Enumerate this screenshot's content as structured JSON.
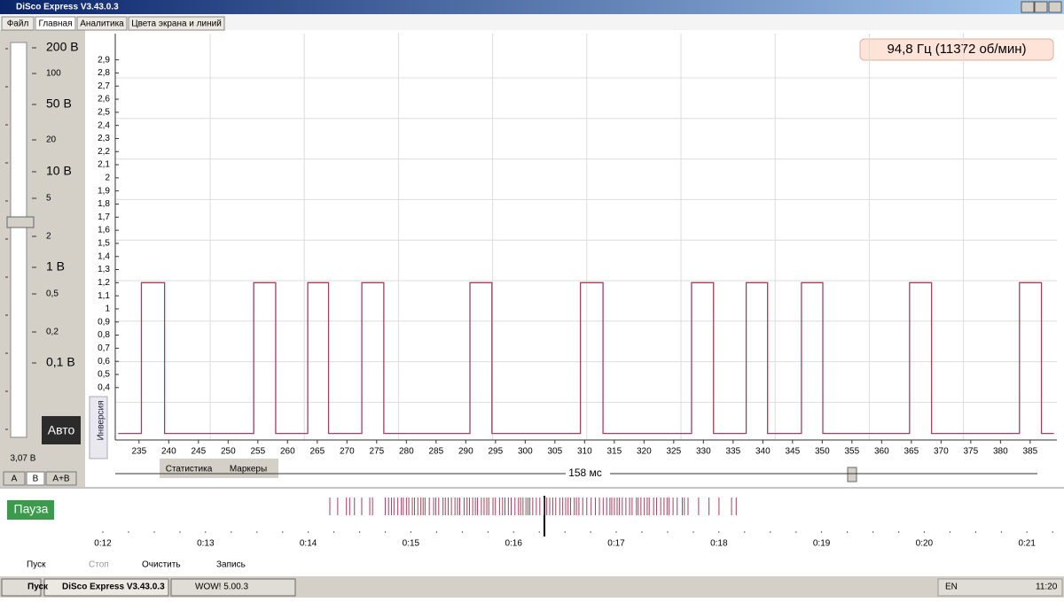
{
  "window": {
    "title": "DiSco Express V3.43.0.3"
  },
  "tabs": [
    "Файл",
    "Главная",
    "Аналитика",
    "Цвета экрана и линий"
  ],
  "scale": {
    "labels": [
      "200 В",
      "100",
      "50 В",
      "20",
      "10 В",
      "5",
      "2",
      "1 В",
      "0,5",
      "0,2",
      "0,1 В"
    ],
    "auto": "Авто",
    "reading": "3,07 В",
    "channels": [
      "A",
      "B",
      "A+B"
    ]
  },
  "chart_data": {
    "type": "line",
    "annotation": "94,8 Гц (11372 об/мин)",
    "x": [
      231.5,
      235.4,
      235.4,
      239.3,
      239.3,
      254.3,
      254.3,
      258.0,
      258.0,
      263.4,
      263.4,
      266.9,
      266.9,
      272.5,
      272.5,
      276.2,
      276.2,
      290.7,
      290.7,
      294.4,
      294.4,
      309.3,
      309.3,
      313.1,
      313.1,
      328.0,
      328.0,
      331.7,
      331.7,
      337.2,
      337.2,
      340.8,
      340.8,
      346.5,
      346.5,
      350.1,
      350.1,
      364.7,
      364.7,
      368.4,
      368.4,
      383.2,
      383.2,
      386.9,
      386.9,
      389
    ],
    "series": [
      {
        "color": "#a3405e",
        "values": [
          0.05,
          0.05,
          1.2,
          1.2,
          0.05,
          0.05,
          1.2,
          1.2,
          0.05,
          0.05,
          1.2,
          1.2,
          0.05,
          0.05,
          1.2,
          1.2,
          0.05,
          0.05,
          1.2,
          1.2,
          0.05,
          0.05,
          1.2,
          1.2,
          0.05,
          0.05,
          1.2,
          1.2,
          0.05,
          0.05,
          1.2,
          1.2,
          0.05,
          0.05,
          1.2,
          1.2,
          0.05,
          0.05,
          1.2,
          1.2,
          0.05,
          0.05,
          1.2,
          1.2,
          0.05,
          0.05
        ]
      }
    ],
    "xlim": [
      231,
      389.5
    ],
    "ylim": [
      0,
      3.1
    ],
    "xticks": [
      235,
      240,
      245,
      250,
      255,
      260,
      265,
      270,
      275,
      280,
      285,
      290,
      295,
      300,
      305,
      310,
      315,
      320,
      325,
      330,
      335,
      340,
      345,
      350,
      355,
      360,
      365,
      370,
      375,
      380,
      385
    ],
    "yticks": [
      {
        "value": 0.4,
        "label": "0,4"
      },
      {
        "value": 0.5,
        "label": "0,5"
      },
      {
        "value": 0.6,
        "label": "0,6"
      },
      {
        "value": 0.7,
        "label": "0,7"
      },
      {
        "value": 0.8,
        "label": "0,8"
      },
      {
        "value": 0.9,
        "label": "0,9"
      },
      1,
      {
        "value": 1.1,
        "label": "1,1"
      },
      {
        "value": 1.2,
        "label": "1,2"
      },
      {
        "value": 1.3,
        "label": "1,3"
      },
      {
        "value": 1.4,
        "label": "1,4"
      },
      {
        "value": 1.5,
        "label": "1,5"
      },
      {
        "value": 1.6,
        "label": "1,6"
      },
      {
        "value": 1.7,
        "label": "1,7"
      },
      {
        "value": 1.8,
        "label": "1,8"
      },
      {
        "value": 1.9,
        "label": "1,9"
      },
      2,
      {
        "value": 2.1,
        "label": "2,1"
      },
      {
        "value": 2.2,
        "label": "2,2"
      },
      {
        "value": 2.3,
        "label": "2,3"
      },
      {
        "value": 2.4,
        "label": "2,4"
      },
      {
        "value": 2.5,
        "label": "2,5"
      },
      {
        "value": 2.6,
        "label": "2,6"
      },
      {
        "value": 2.7,
        "label": "2,7"
      },
      {
        "value": 2.8,
        "label": "2,8"
      },
      {
        "value": 2.9,
        "label": "2,9"
      }
    ]
  },
  "inversion": "Инверсия",
  "bottom_tabs": [
    "Статистика",
    "Маркеры"
  ],
  "span": "158 мс",
  "timeline": {
    "status": "Пауза",
    "labels": [
      "0:12",
      "0:13",
      "0:14",
      "0:15",
      "0:16",
      "0:17",
      "0:18",
      "0:19",
      "0:20",
      "0:21"
    ]
  },
  "toolbar": [
    "Пуск",
    "Стоп",
    "Очистить",
    "Запись"
  ],
  "taskbar": {
    "start": "Пуск",
    "windows": [
      "DiSco Express V3.43.0.3",
      "WOW! 5.00.3"
    ],
    "lang": "EN",
    "clock": "11:20"
  }
}
